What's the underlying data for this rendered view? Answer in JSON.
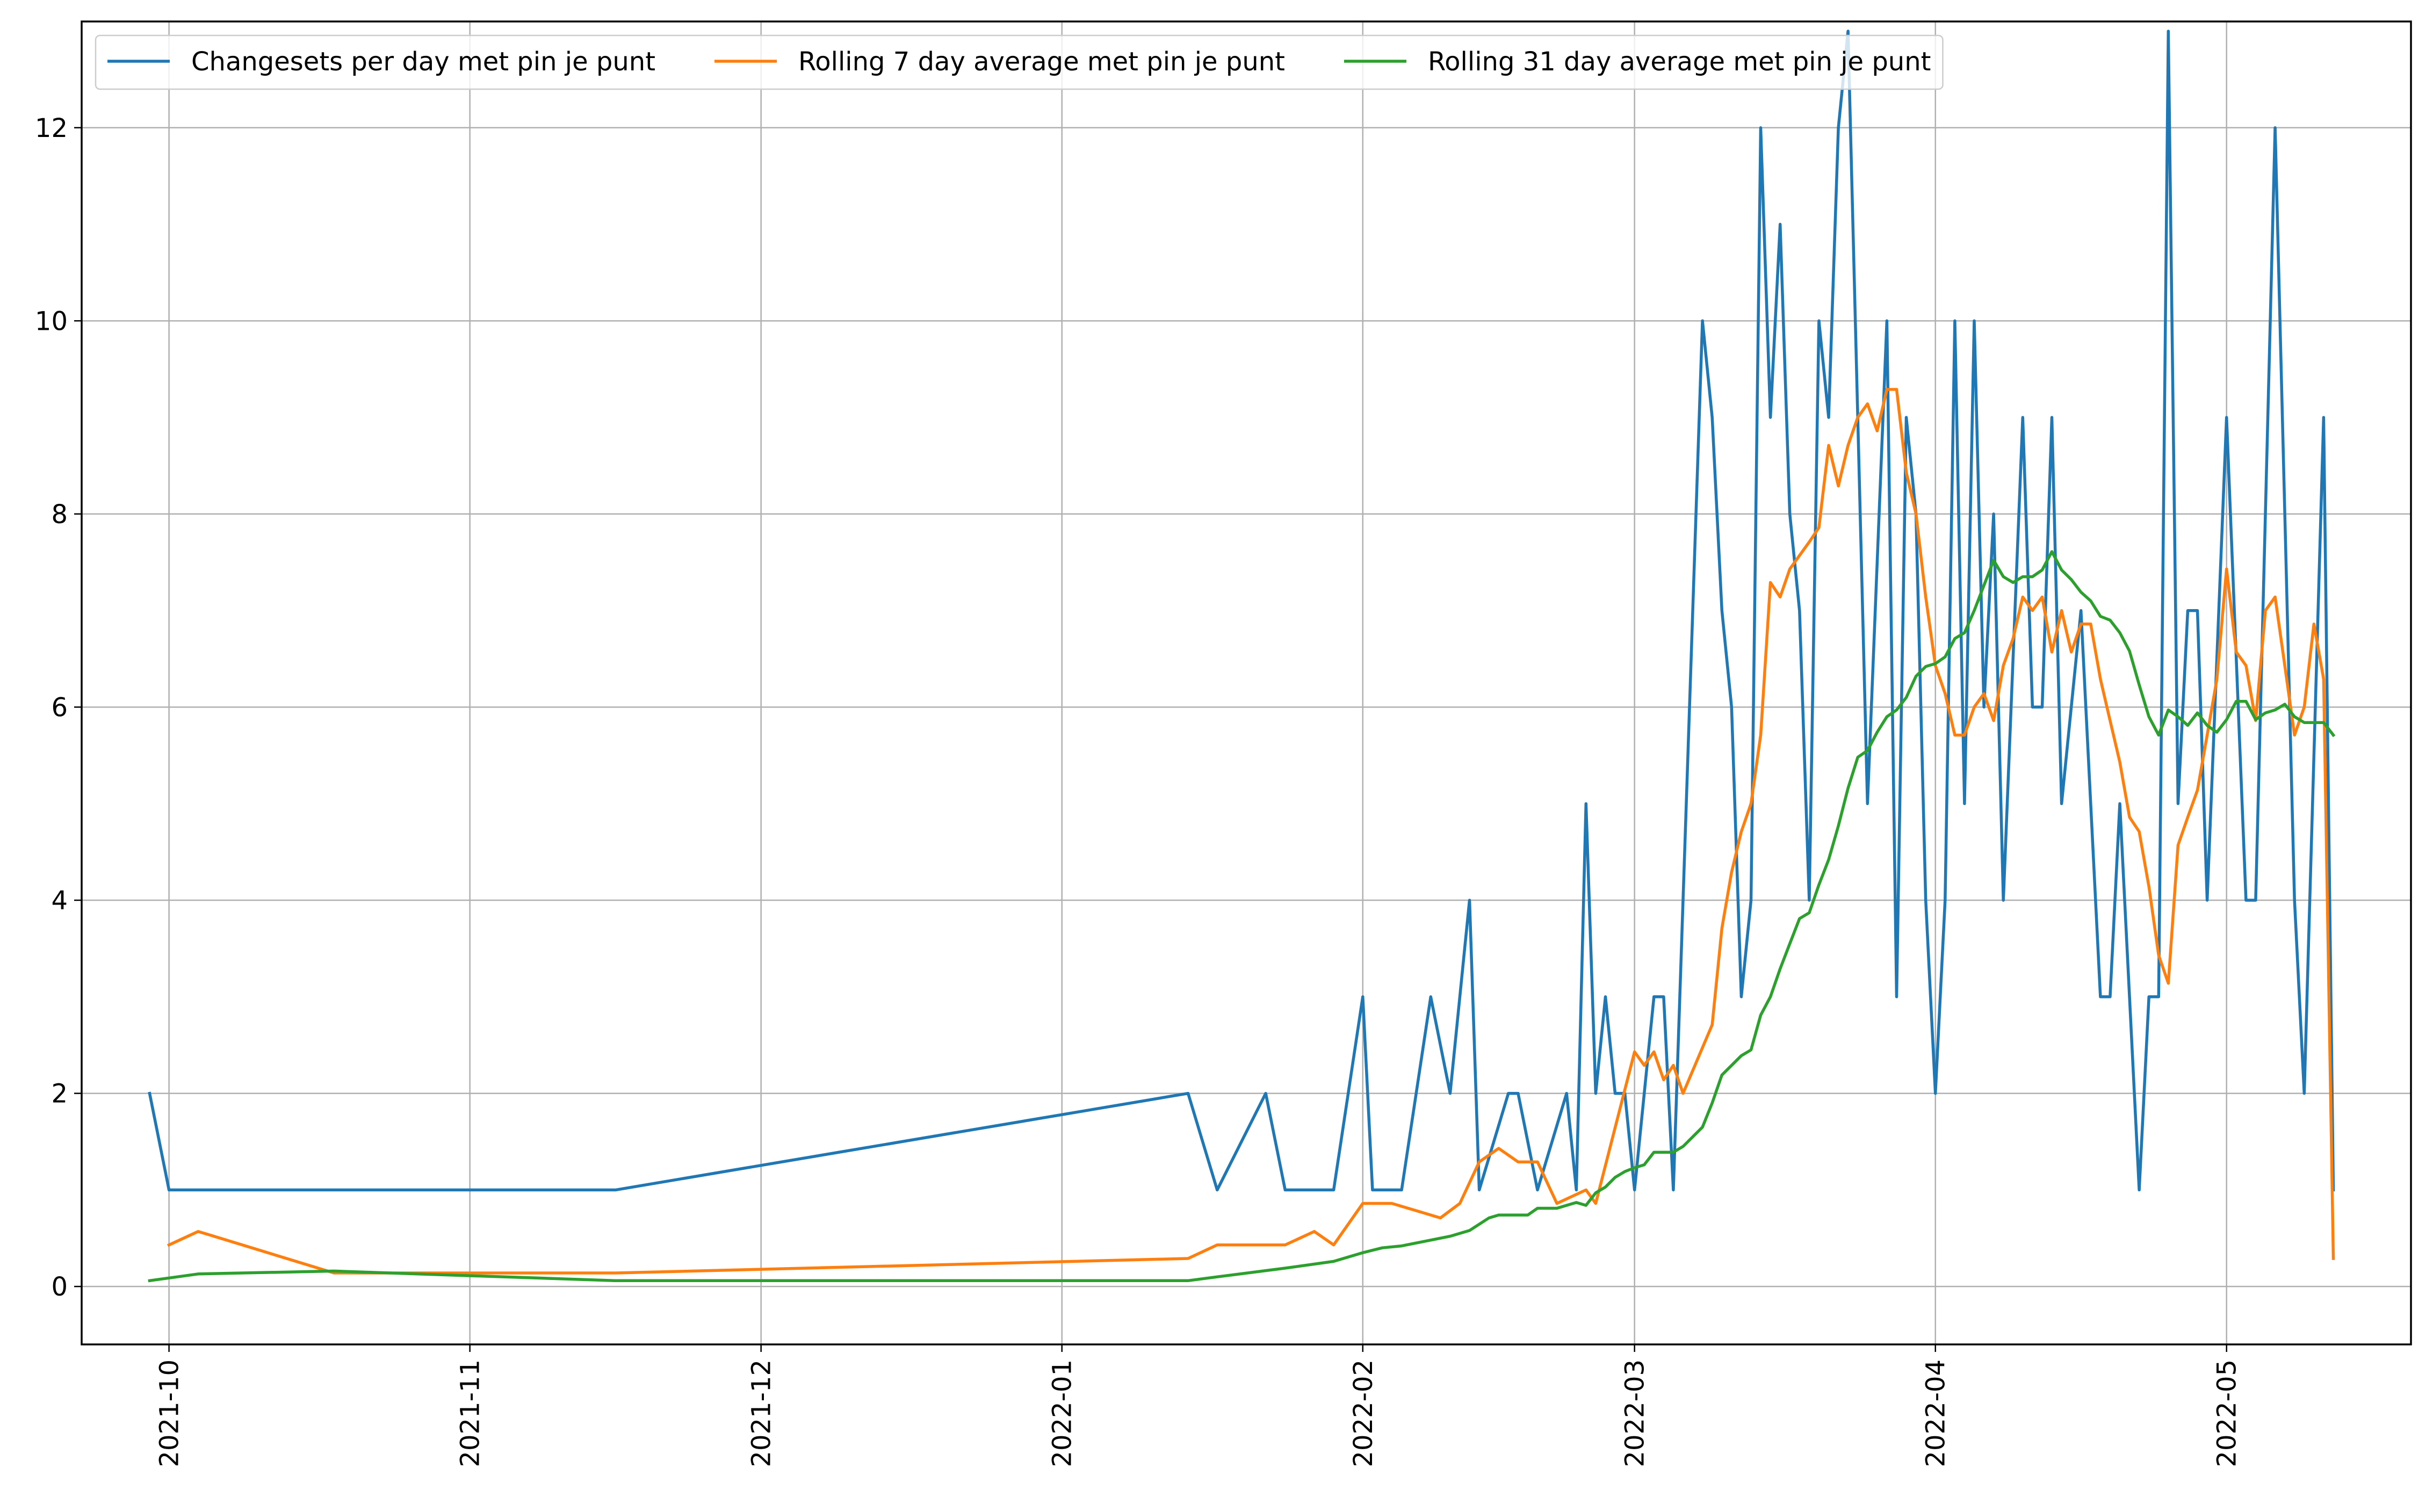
{
  "chart_data": {
    "type": "line",
    "title": "",
    "xlabel": "",
    "ylabel": "",
    "x_axis": {
      "type": "date",
      "range": [
        "2021-09-22",
        "2022-05-20"
      ],
      "ticks": [
        "2021-10-01",
        "2021-11-01",
        "2021-12-01",
        "2022-01-01",
        "2022-02-01",
        "2022-03-01",
        "2022-04-01",
        "2022-05-01"
      ],
      "tick_labels": [
        "2021-10",
        "2021-11",
        "2021-12",
        "2022-01",
        "2022-02",
        "2022-03",
        "2022-04",
        "2022-05"
      ],
      "tick_label_rotation": "vertical"
    },
    "y_axis": {
      "range": [
        -0.6,
        13.1
      ],
      "ticks": [
        0,
        2,
        4,
        6,
        8,
        10,
        12
      ],
      "tick_labels": [
        "0",
        "2",
        "4",
        "6",
        "8",
        "10",
        "12"
      ]
    },
    "grid": true,
    "legend": {
      "placement": "top-left",
      "columns": 3
    },
    "series": [
      {
        "name": "Changesets per day met pin je punt",
        "color": "#1f77b4",
        "points": [
          [
            "2021-09-29",
            2
          ],
          [
            "2021-10-01",
            1
          ],
          [
            "2021-11-16",
            1
          ],
          [
            "2022-01-14",
            2
          ],
          [
            "2022-01-17",
            1
          ],
          [
            "2022-01-22",
            2
          ],
          [
            "2022-01-24",
            1
          ],
          [
            "2022-01-29",
            1
          ],
          [
            "2022-02-01",
            3
          ],
          [
            "2022-02-02",
            1
          ],
          [
            "2022-02-05",
            1
          ],
          [
            "2022-02-08",
            3
          ],
          [
            "2022-02-10",
            2
          ],
          [
            "2022-02-12",
            4
          ],
          [
            "2022-02-13",
            1
          ],
          [
            "2022-02-16",
            2
          ],
          [
            "2022-02-17",
            2
          ],
          [
            "2022-02-19",
            1
          ],
          [
            "2022-02-22",
            2
          ],
          [
            "2022-02-23",
            1
          ],
          [
            "2022-02-24",
            5
          ],
          [
            "2022-02-25",
            2
          ],
          [
            "2022-02-26",
            3
          ],
          [
            "2022-02-27",
            2
          ],
          [
            "2022-02-28",
            2
          ],
          [
            "2022-03-01",
            1
          ],
          [
            "2022-03-03",
            3
          ],
          [
            "2022-03-04",
            3
          ],
          [
            "2022-03-05",
            1
          ],
          [
            "2022-03-08",
            10
          ],
          [
            "2022-03-09",
            9
          ],
          [
            "2022-03-10",
            7
          ],
          [
            "2022-03-11",
            6
          ],
          [
            "2022-03-12",
            3
          ],
          [
            "2022-03-13",
            4
          ],
          [
            "2022-03-14",
            12
          ],
          [
            "2022-03-15",
            9
          ],
          [
            "2022-03-16",
            11
          ],
          [
            "2022-03-17",
            8
          ],
          [
            "2022-03-18",
            7
          ],
          [
            "2022-03-19",
            4
          ],
          [
            "2022-03-20",
            10
          ],
          [
            "2022-03-21",
            9
          ],
          [
            "2022-03-22",
            12
          ],
          [
            "2022-03-23",
            13
          ],
          [
            "2022-03-24",
            9
          ],
          [
            "2022-03-25",
            5
          ],
          [
            "2022-03-27",
            10
          ],
          [
            "2022-03-28",
            3
          ],
          [
            "2022-03-29",
            9
          ],
          [
            "2022-03-30",
            8
          ],
          [
            "2022-03-31",
            4
          ],
          [
            "2022-04-01",
            2
          ],
          [
            "2022-04-02",
            4
          ],
          [
            "2022-04-03",
            10
          ],
          [
            "2022-04-04",
            5
          ],
          [
            "2022-04-05",
            10
          ],
          [
            "2022-04-06",
            6
          ],
          [
            "2022-04-07",
            8
          ],
          [
            "2022-04-08",
            4
          ],
          [
            "2022-04-10",
            9
          ],
          [
            "2022-04-11",
            6
          ],
          [
            "2022-04-12",
            6
          ],
          [
            "2022-04-13",
            9
          ],
          [
            "2022-04-14",
            5
          ],
          [
            "2022-04-16",
            7
          ],
          [
            "2022-04-18",
            3
          ],
          [
            "2022-04-19",
            3
          ],
          [
            "2022-04-20",
            5
          ],
          [
            "2022-04-22",
            1
          ],
          [
            "2022-04-23",
            3
          ],
          [
            "2022-04-24",
            3
          ],
          [
            "2022-04-25",
            13
          ],
          [
            "2022-04-26",
            5
          ],
          [
            "2022-04-27",
            7
          ],
          [
            "2022-04-28",
            7
          ],
          [
            "2022-04-29",
            4
          ],
          [
            "2022-05-01",
            9
          ],
          [
            "2022-05-03",
            4
          ],
          [
            "2022-05-04",
            4
          ],
          [
            "2022-05-06",
            12
          ],
          [
            "2022-05-08",
            4
          ],
          [
            "2022-05-09",
            2
          ],
          [
            "2022-05-11",
            9
          ],
          [
            "2022-05-12",
            1
          ]
        ]
      },
      {
        "name": "Rolling 7 day average met pin je punt",
        "color": "#ff7f0e",
        "points": [
          [
            "2021-10-01",
            0.43
          ],
          [
            "2021-10-04",
            0.57
          ],
          [
            "2021-10-18",
            0.14
          ],
          [
            "2021-11-16",
            0.14
          ],
          [
            "2022-01-14",
            0.29
          ],
          [
            "2022-01-17",
            0.43
          ],
          [
            "2022-01-24",
            0.43
          ],
          [
            "2022-01-27",
            0.57
          ],
          [
            "2022-01-29",
            0.43
          ],
          [
            "2022-02-01",
            0.86
          ],
          [
            "2022-02-04",
            0.86
          ],
          [
            "2022-02-09",
            0.71
          ],
          [
            "2022-02-11",
            0.86
          ],
          [
            "2022-02-13",
            1.29
          ],
          [
            "2022-02-15",
            1.43
          ],
          [
            "2022-02-17",
            1.29
          ],
          [
            "2022-02-19",
            1.29
          ],
          [
            "2022-02-21",
            0.86
          ],
          [
            "2022-02-24",
            1.0
          ],
          [
            "2022-02-25",
            0.86
          ],
          [
            "2022-03-01",
            2.43
          ],
          [
            "2022-03-02",
            2.29
          ],
          [
            "2022-03-03",
            2.43
          ],
          [
            "2022-03-04",
            2.14
          ],
          [
            "2022-03-05",
            2.29
          ],
          [
            "2022-03-06",
            2.0
          ],
          [
            "2022-03-09",
            2.71
          ],
          [
            "2022-03-10",
            3.71
          ],
          [
            "2022-03-11",
            4.29
          ],
          [
            "2022-03-12",
            4.71
          ],
          [
            "2022-03-13",
            5.0
          ],
          [
            "2022-03-14",
            5.71
          ],
          [
            "2022-03-15",
            7.29
          ],
          [
            "2022-03-16",
            7.14
          ],
          [
            "2022-03-17",
            7.43
          ],
          [
            "2022-03-19",
            7.71
          ],
          [
            "2022-03-20",
            7.86
          ],
          [
            "2022-03-21",
            8.71
          ],
          [
            "2022-03-22",
            8.29
          ],
          [
            "2022-03-23",
            8.71
          ],
          [
            "2022-03-24",
            9.0
          ],
          [
            "2022-03-25",
            9.14
          ],
          [
            "2022-03-26",
            8.86
          ],
          [
            "2022-03-27",
            9.29
          ],
          [
            "2022-03-28",
            9.29
          ],
          [
            "2022-03-29",
            8.43
          ],
          [
            "2022-03-30",
            8.0
          ],
          [
            "2022-03-31",
            7.14
          ],
          [
            "2022-04-01",
            6.43
          ],
          [
            "2022-04-02",
            6.14
          ],
          [
            "2022-04-03",
            5.71
          ],
          [
            "2022-04-04",
            5.71
          ],
          [
            "2022-04-05",
            6.0
          ],
          [
            "2022-04-06",
            6.14
          ],
          [
            "2022-04-07",
            5.86
          ],
          [
            "2022-04-08",
            6.43
          ],
          [
            "2022-04-09",
            6.71
          ],
          [
            "2022-04-10",
            7.14
          ],
          [
            "2022-04-11",
            7.0
          ],
          [
            "2022-04-12",
            7.14
          ],
          [
            "2022-04-13",
            6.57
          ],
          [
            "2022-04-14",
            7.0
          ],
          [
            "2022-04-15",
            6.57
          ],
          [
            "2022-04-16",
            6.86
          ],
          [
            "2022-04-17",
            6.86
          ],
          [
            "2022-04-18",
            6.29
          ],
          [
            "2022-04-19",
            5.86
          ],
          [
            "2022-04-20",
            5.43
          ],
          [
            "2022-04-21",
            4.86
          ],
          [
            "2022-04-22",
            4.71
          ],
          [
            "2022-04-23",
            4.14
          ],
          [
            "2022-04-24",
            3.43
          ],
          [
            "2022-04-25",
            3.14
          ],
          [
            "2022-04-26",
            4.57
          ],
          [
            "2022-04-27",
            4.86
          ],
          [
            "2022-04-28",
            5.14
          ],
          [
            "2022-04-29",
            5.71
          ],
          [
            "2022-04-30",
            6.29
          ],
          [
            "2022-05-01",
            7.43
          ],
          [
            "2022-05-02",
            6.57
          ],
          [
            "2022-05-03",
            6.43
          ],
          [
            "2022-05-04",
            5.86
          ],
          [
            "2022-05-05",
            7.0
          ],
          [
            "2022-05-06",
            7.14
          ],
          [
            "2022-05-07",
            6.43
          ],
          [
            "2022-05-08",
            5.71
          ],
          [
            "2022-05-09",
            6.0
          ],
          [
            "2022-05-10",
            6.86
          ],
          [
            "2022-05-11",
            6.29
          ],
          [
            "2022-05-12",
            0.29
          ]
        ]
      },
      {
        "name": "Rolling 31 day average met pin je punt",
        "color": "#2ca02c",
        "points": [
          [
            "2021-09-29",
            0.06
          ],
          [
            "2021-10-04",
            0.13
          ],
          [
            "2021-10-18",
            0.16
          ],
          [
            "2021-11-16",
            0.06
          ],
          [
            "2022-01-14",
            0.06
          ],
          [
            "2022-01-17",
            0.1
          ],
          [
            "2022-01-24",
            0.19
          ],
          [
            "2022-01-29",
            0.26
          ],
          [
            "2022-02-01",
            0.35
          ],
          [
            "2022-02-03",
            0.4
          ],
          [
            "2022-02-05",
            0.42
          ],
          [
            "2022-02-08",
            0.48
          ],
          [
            "2022-02-10",
            0.52
          ],
          [
            "2022-02-12",
            0.58
          ],
          [
            "2022-02-14",
            0.71
          ],
          [
            "2022-02-15",
            0.74
          ],
          [
            "2022-02-18",
            0.74
          ],
          [
            "2022-02-19",
            0.81
          ],
          [
            "2022-02-21",
            0.81
          ],
          [
            "2022-02-23",
            0.87
          ],
          [
            "2022-02-24",
            0.84
          ],
          [
            "2022-02-25",
            0.97
          ],
          [
            "2022-02-26",
            1.03
          ],
          [
            "2022-02-27",
            1.13
          ],
          [
            "2022-02-28",
            1.19
          ],
          [
            "2022-03-01",
            1.23
          ],
          [
            "2022-03-02",
            1.26
          ],
          [
            "2022-03-03",
            1.39
          ],
          [
            "2022-03-05",
            1.39
          ],
          [
            "2022-03-06",
            1.45
          ],
          [
            "2022-03-08",
            1.65
          ],
          [
            "2022-03-09",
            1.9
          ],
          [
            "2022-03-10",
            2.19
          ],
          [
            "2022-03-12",
            2.39
          ],
          [
            "2022-03-13",
            2.45
          ],
          [
            "2022-03-14",
            2.81
          ],
          [
            "2022-03-15",
            3.0
          ],
          [
            "2022-03-16",
            3.29
          ],
          [
            "2022-03-17",
            3.55
          ],
          [
            "2022-03-18",
            3.81
          ],
          [
            "2022-03-19",
            3.87
          ],
          [
            "2022-03-20",
            4.16
          ],
          [
            "2022-03-21",
            4.42
          ],
          [
            "2022-03-22",
            4.77
          ],
          [
            "2022-03-23",
            5.16
          ],
          [
            "2022-03-24",
            5.48
          ],
          [
            "2022-03-25",
            5.55
          ],
          [
            "2022-03-26",
            5.74
          ],
          [
            "2022-03-27",
            5.9
          ],
          [
            "2022-03-28",
            5.97
          ],
          [
            "2022-03-29",
            6.1
          ],
          [
            "2022-03-30",
            6.32
          ],
          [
            "2022-03-31",
            6.42
          ],
          [
            "2022-04-01",
            6.45
          ],
          [
            "2022-04-02",
            6.52
          ],
          [
            "2022-04-03",
            6.71
          ],
          [
            "2022-04-04",
            6.77
          ],
          [
            "2022-04-05",
            7.0
          ],
          [
            "2022-04-06",
            7.26
          ],
          [
            "2022-04-07",
            7.52
          ],
          [
            "2022-04-08",
            7.35
          ],
          [
            "2022-04-09",
            7.29
          ],
          [
            "2022-04-10",
            7.35
          ],
          [
            "2022-04-11",
            7.35
          ],
          [
            "2022-04-12",
            7.42
          ],
          [
            "2022-04-13",
            7.61
          ],
          [
            "2022-04-14",
            7.42
          ],
          [
            "2022-04-15",
            7.32
          ],
          [
            "2022-04-16",
            7.19
          ],
          [
            "2022-04-17",
            7.1
          ],
          [
            "2022-04-18",
            6.94
          ],
          [
            "2022-04-19",
            6.9
          ],
          [
            "2022-04-20",
            6.77
          ],
          [
            "2022-04-21",
            6.58
          ],
          [
            "2022-04-22",
            6.23
          ],
          [
            "2022-04-23",
            5.9
          ],
          [
            "2022-04-24",
            5.71
          ],
          [
            "2022-04-25",
            5.97
          ],
          [
            "2022-04-26",
            5.9
          ],
          [
            "2022-04-27",
            5.81
          ],
          [
            "2022-04-28",
            5.94
          ],
          [
            "2022-04-29",
            5.81
          ],
          [
            "2022-04-30",
            5.74
          ],
          [
            "2022-05-01",
            5.87
          ],
          [
            "2022-05-02",
            6.06
          ],
          [
            "2022-05-03",
            6.06
          ],
          [
            "2022-05-04",
            5.87
          ],
          [
            "2022-05-05",
            5.94
          ],
          [
            "2022-05-06",
            5.97
          ],
          [
            "2022-05-07",
            6.03
          ],
          [
            "2022-05-08",
            5.9
          ],
          [
            "2022-05-09",
            5.84
          ],
          [
            "2022-05-10",
            5.84
          ],
          [
            "2022-05-11",
            5.84
          ],
          [
            "2022-05-12",
            5.71
          ]
        ]
      }
    ]
  }
}
